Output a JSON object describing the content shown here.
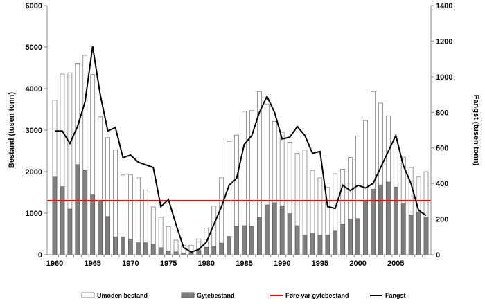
{
  "chart_data": {
    "type": "bar",
    "title": "",
    "xlabel": "",
    "ylabel": "Bestand (tusen tonn)",
    "y2label": "Fangst (tusen tonn)",
    "ylim": [
      0,
      6000
    ],
    "y2lim": [
      0,
      1400
    ],
    "yticks": [
      0,
      1000,
      2000,
      3000,
      4000,
      5000,
      6000
    ],
    "y2ticks": [
      0,
      200,
      400,
      600,
      800,
      1000,
      1200,
      1400
    ],
    "xticks": [
      1960,
      1965,
      1970,
      1975,
      1980,
      1985,
      1990,
      1995,
      2000,
      2005
    ],
    "x": [
      1960,
      1961,
      1962,
      1963,
      1964,
      1965,
      1966,
      1967,
      1968,
      1969,
      1970,
      1971,
      1972,
      1973,
      1974,
      1975,
      1976,
      1977,
      1978,
      1979,
      1980,
      1981,
      1982,
      1983,
      1984,
      1985,
      1986,
      1987,
      1988,
      1989,
      1990,
      1991,
      1992,
      1993,
      1994,
      1995,
      1996,
      1997,
      1998,
      1999,
      2000,
      2001,
      2002,
      2003,
      2004,
      2005,
      2006,
      2007,
      2008,
      2009
    ],
    "grid": false,
    "legend_position": "bottom",
    "series": [
      {
        "name": "Umoden bestand",
        "kind": "bar-total",
        "axis": "left",
        "color": "#ffffff",
        "values": [
          3720,
          4350,
          4380,
          4610,
          4800,
          4340,
          3320,
          2820,
          2520,
          1920,
          1920,
          1850,
          1560,
          1150,
          900,
          680,
          350,
          220,
          230,
          380,
          640,
          1170,
          1850,
          2730,
          2880,
          3450,
          3470,
          3930,
          3620,
          3210,
          2950,
          2710,
          2440,
          2520,
          2030,
          1850,
          1620,
          1950,
          2060,
          2340,
          2860,
          3230,
          3930,
          3650,
          3340,
          2860,
          2350,
          2100,
          1870,
          2000
        ]
      },
      {
        "name": "Gytebestand",
        "kind": "bar",
        "axis": "left",
        "color": "#7f7f7f",
        "values": [
          1870,
          1640,
          1100,
          2170,
          2030,
          1440,
          1290,
          920,
          430,
          430,
          380,
          290,
          290,
          250,
          170,
          90,
          70,
          40,
          50,
          100,
          180,
          200,
          280,
          440,
          680,
          700,
          680,
          900,
          1200,
          1250,
          1180,
          990,
          700,
          470,
          520,
          470,
          470,
          570,
          740,
          860,
          870,
          1310,
          1580,
          1680,
          1750,
          1630,
          1240,
          960,
          1020,
          900
        ]
      },
      {
        "name": "Føre-var gytebestand",
        "kind": "hline",
        "axis": "left",
        "color": "#ff0000",
        "value": 1300
      },
      {
        "name": "Fangst",
        "kind": "line",
        "axis": "right",
        "color": "#000000",
        "values": [
          695,
          695,
          625,
          720,
          860,
          1170,
          900,
          695,
          715,
          545,
          560,
          520,
          505,
          490,
          270,
          310,
          170,
          40,
          15,
          30,
          70,
          170,
          270,
          390,
          430,
          620,
          670,
          800,
          890,
          800,
          650,
          660,
          720,
          670,
          570,
          580,
          270,
          260,
          390,
          360,
          390,
          375,
          400,
          490,
          580,
          670,
          500,
          400,
          250,
          220
        ]
      }
    ]
  }
}
